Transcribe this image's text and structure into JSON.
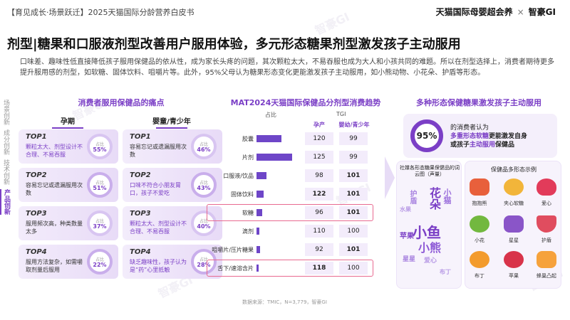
{
  "header": {
    "breadcrumb": "【育见成长·场景跃迁】2025天猫国际分龄营养白皮书",
    "brand_left": "天猫国际母婴超会养",
    "brand_sep": "×",
    "brand_right": "智豪GI"
  },
  "title": "剂型|糖果和口服液剂型改善用户服用体验，多元形态糖果剂型激发孩子主动服用",
  "description": "口味差、趣味性低直接降低孩子服用保健品的依从性，成为家长头疼的问题，其次颗粒太大，不易吞服也成为大人和小孩共同的难题。所以在剂型选择上，消费者期待更多提升服用感的剂型，如软糖、固体饮料、咀嚼片等。此外，95%父母认为糖果形态变化更能激发孩子主动服用，如小熊动物、小花朵、护盾等形态。",
  "sidenav": [
    {
      "label": "场景创新",
      "active": false
    },
    {
      "label": "成分创新",
      "active": false
    },
    {
      "label": "技术创新",
      "active": false
    },
    {
      "label": "产品创新",
      "active": true
    }
  ],
  "pain_points": {
    "title": "消费者服用保健品的痛点",
    "col_left": "孕期",
    "col_right": "婴童/青少年",
    "ratio_label": "占比",
    "left": [
      {
        "rank": "TOP1",
        "desc": "颗粒太大、剂型设计不合理、不易吞服",
        "pct": "55%",
        "hl": true
      },
      {
        "rank": "TOP2",
        "desc": "容易忘记或遗漏服用次数",
        "pct": "51%",
        "hl": false
      },
      {
        "rank": "TOP3",
        "desc": "服用频次高，种类数量太多",
        "pct": "37%",
        "hl": false
      },
      {
        "rank": "TOP4",
        "desc": "服用方法复杂，如需嚼取剂量后服用",
        "pct": "22%",
        "hl": false
      }
    ],
    "right": [
      {
        "rank": "TOP1",
        "desc": "容易忘记或遗漏服用次数",
        "pct": "46%",
        "hl": false
      },
      {
        "rank": "TOP2",
        "desc": "口味不符合小朋友胃口，孩子不爱吃",
        "pct": "43%",
        "hl": true
      },
      {
        "rank": "TOP3",
        "desc": "颗粒太大、剂型设计不合理、不易吞服",
        "pct": "40%",
        "hl": true
      },
      {
        "rank": "TOP4",
        "desc": "缺乏趣味性，孩子认为是“药”心里抵触",
        "pct": "28%",
        "hl": true
      }
    ]
  },
  "trend": {
    "title": "MAT2024天猫国际保健品分剂型消费趋势",
    "share_label": "占比",
    "tgi_label": "TGI",
    "col_preg": "孕产",
    "col_kids": "婴幼/青少年",
    "rows": [
      {
        "name": "胶囊",
        "share": 0.55,
        "preg": "120",
        "kids": "99",
        "preg_bold": false,
        "kids_bold": false,
        "highlight": false
      },
      {
        "name": "片剂",
        "share": 0.78,
        "preg": "125",
        "kids": "99",
        "preg_bold": false,
        "kids_bold": false,
        "highlight": false
      },
      {
        "name": "口服液/饮品",
        "share": 0.22,
        "preg": "98",
        "kids": "101",
        "preg_bold": false,
        "kids_bold": true,
        "highlight": false
      },
      {
        "name": "固体饮料",
        "share": 0.16,
        "preg": "122",
        "kids": "101",
        "preg_bold": true,
        "kids_bold": true,
        "highlight": false
      },
      {
        "name": "软糖",
        "share": 0.12,
        "preg": "96",
        "kids": "101",
        "preg_bold": false,
        "kids_bold": true,
        "highlight": true
      },
      {
        "name": "滴剂",
        "share": 0.06,
        "preg": "110",
        "kids": "100",
        "preg_bold": false,
        "kids_bold": false,
        "highlight": false
      },
      {
        "name": "咀嚼片/压片糖果",
        "share": 0.08,
        "preg": "92",
        "kids": "101",
        "preg_bold": false,
        "kids_bold": true,
        "highlight": false
      },
      {
        "name": "舌下/速溶含片",
        "share": 0.03,
        "preg": "118",
        "kids": "100",
        "preg_bold": true,
        "kids_bold": false,
        "highlight": true
      }
    ],
    "source": "数据来源：TMIC，N=3,779，智豪GI"
  },
  "forms": {
    "title": "多种形态保健糖果激发孩子主动服用",
    "pct": "95%",
    "stat_pre": "的消费者认为",
    "stat_hl1": "多重形态软糖",
    "stat_mid1": "更能激发自身",
    "stat_mid2": "或孩子",
    "stat_hl2": "主动服用",
    "stat_end": "保健品",
    "cloud_title": "社媒各形态糖果保健品的词云图（声量）",
    "words": [
      "小鱼",
      "小熊",
      "花朵",
      "小猫",
      "苹果",
      "护盾",
      "星星",
      "爱心",
      "水果",
      "布丁"
    ],
    "examples_title": "保健品多形态示例",
    "examples": [
      "抱抱熊",
      "夹心软糖",
      "爱心",
      "小花",
      "星星",
      "护盾",
      "布丁",
      "苹果",
      "蜂巢凸起"
    ]
  }
}
